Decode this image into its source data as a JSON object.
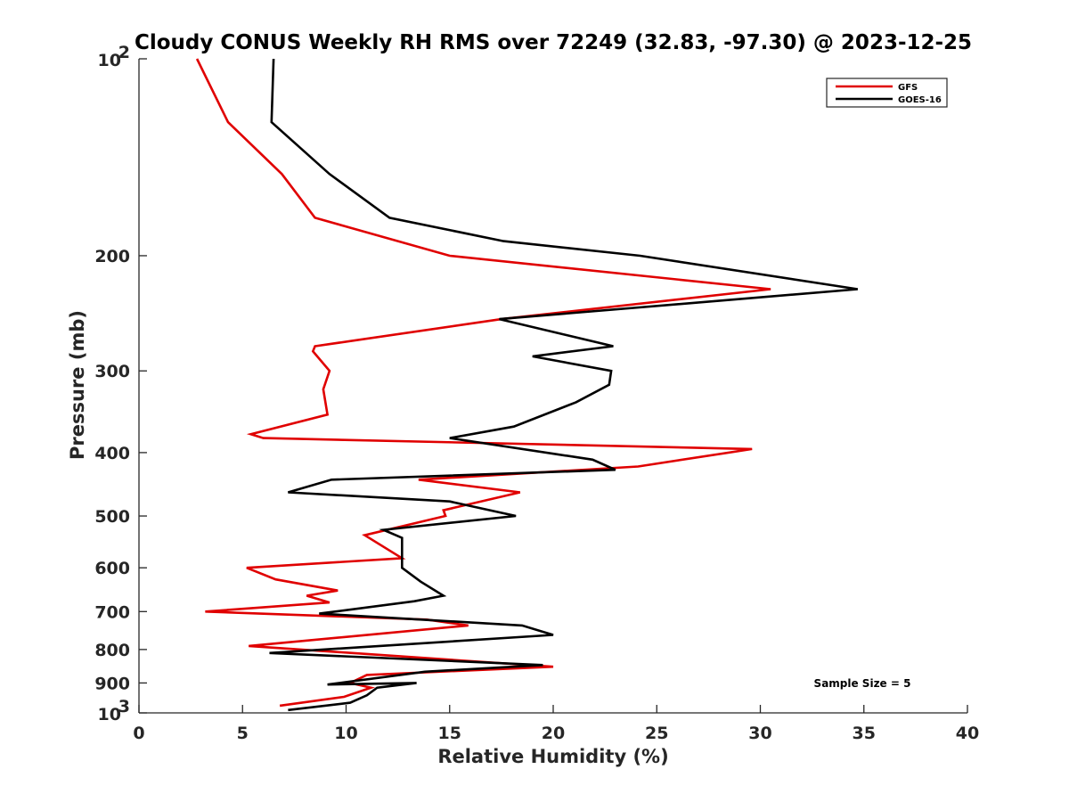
{
  "chart_data": {
    "type": "line",
    "title": "Cloudy CONUS Weekly RH RMS over 72249 (32.83, -97.30) @ 2023-12-25",
    "xlabel": "Relative Humidity (%)",
    "ylabel": "Pressure (mb)",
    "xlim": [
      0,
      40
    ],
    "ylim": [
      100,
      1000
    ],
    "y_scale": "log",
    "y_reversed": true,
    "grid": false,
    "legend_position": "top-right",
    "x_ticks": [
      "0",
      "5",
      "10",
      "15",
      "20",
      "25",
      "30",
      "35",
      "40"
    ],
    "y_ticks": [
      {
        "value": 100,
        "base": "10",
        "exp": "2"
      },
      {
        "value": 200,
        "label": "200"
      },
      {
        "value": 300,
        "label": "300"
      },
      {
        "value": 400,
        "label": "400"
      },
      {
        "value": 500,
        "label": "500"
      },
      {
        "value": 600,
        "label": "600"
      },
      {
        "value": 700,
        "label": "700"
      },
      {
        "value": 800,
        "label": "800"
      },
      {
        "value": 900,
        "label": "900"
      },
      {
        "value": 1000,
        "base": "10",
        "exp": "3"
      }
    ],
    "series": [
      {
        "name": "GFS",
        "color": "#e00000",
        "points": [
          [
            2.8,
            100
          ],
          [
            4.3,
            125
          ],
          [
            6.9,
            150
          ],
          [
            8.5,
            175
          ],
          [
            15.0,
            200
          ],
          [
            30.5,
            225
          ],
          [
            17.5,
            250
          ],
          [
            8.5,
            275
          ],
          [
            8.4,
            280
          ],
          [
            9.2,
            300
          ],
          [
            8.9,
            320
          ],
          [
            9.1,
            350
          ],
          [
            5.4,
            375
          ],
          [
            6.0,
            380
          ],
          [
            29.6,
            395
          ],
          [
            24.1,
            420
          ],
          [
            13.5,
            440
          ],
          [
            18.4,
            460
          ],
          [
            14.7,
            490
          ],
          [
            14.8,
            500
          ],
          [
            10.9,
            535
          ],
          [
            12.7,
            580
          ],
          [
            5.2,
            600
          ],
          [
            6.6,
            625
          ],
          [
            9.6,
            650
          ],
          [
            8.1,
            662
          ],
          [
            9.2,
            678
          ],
          [
            3.2,
            700
          ],
          [
            13.9,
            720
          ],
          [
            15.9,
            735
          ],
          [
            5.3,
            790
          ],
          [
            20.0,
            850
          ],
          [
            11.0,
            875
          ],
          [
            10.2,
            900
          ],
          [
            11.2,
            915
          ],
          [
            9.9,
            945
          ],
          [
            6.8,
            975
          ]
        ]
      },
      {
        "name": "GOES-16",
        "color": "#000000",
        "points": [
          [
            6.5,
            100
          ],
          [
            6.4,
            125
          ],
          [
            9.2,
            150
          ],
          [
            12.1,
            175
          ],
          [
            17.6,
            190
          ],
          [
            24.2,
            200
          ],
          [
            34.7,
            225
          ],
          [
            17.4,
            250
          ],
          [
            22.9,
            275
          ],
          [
            19.0,
            285
          ],
          [
            22.8,
            300
          ],
          [
            22.7,
            315
          ],
          [
            21.1,
            335
          ],
          [
            18.1,
            365
          ],
          [
            15.0,
            380
          ],
          [
            21.9,
            410
          ],
          [
            23.0,
            425
          ],
          [
            9.3,
            440
          ],
          [
            7.2,
            460
          ],
          [
            15.0,
            475
          ],
          [
            18.2,
            500
          ],
          [
            11.8,
            525
          ],
          [
            12.7,
            540
          ],
          [
            12.7,
            575
          ],
          [
            12.7,
            600
          ],
          [
            13.6,
            630
          ],
          [
            14.7,
            662
          ],
          [
            13.3,
            675
          ],
          [
            8.7,
            705
          ],
          [
            18.5,
            735
          ],
          [
            20.0,
            760
          ],
          [
            6.3,
            810
          ],
          [
            19.5,
            845
          ],
          [
            13.8,
            865
          ],
          [
            9.1,
            905
          ],
          [
            13.4,
            900
          ],
          [
            11.5,
            915
          ],
          [
            11.0,
            940
          ],
          [
            10.2,
            965
          ],
          [
            7.2,
            990
          ]
        ]
      }
    ],
    "annotation": "Sample Size = 5"
  }
}
